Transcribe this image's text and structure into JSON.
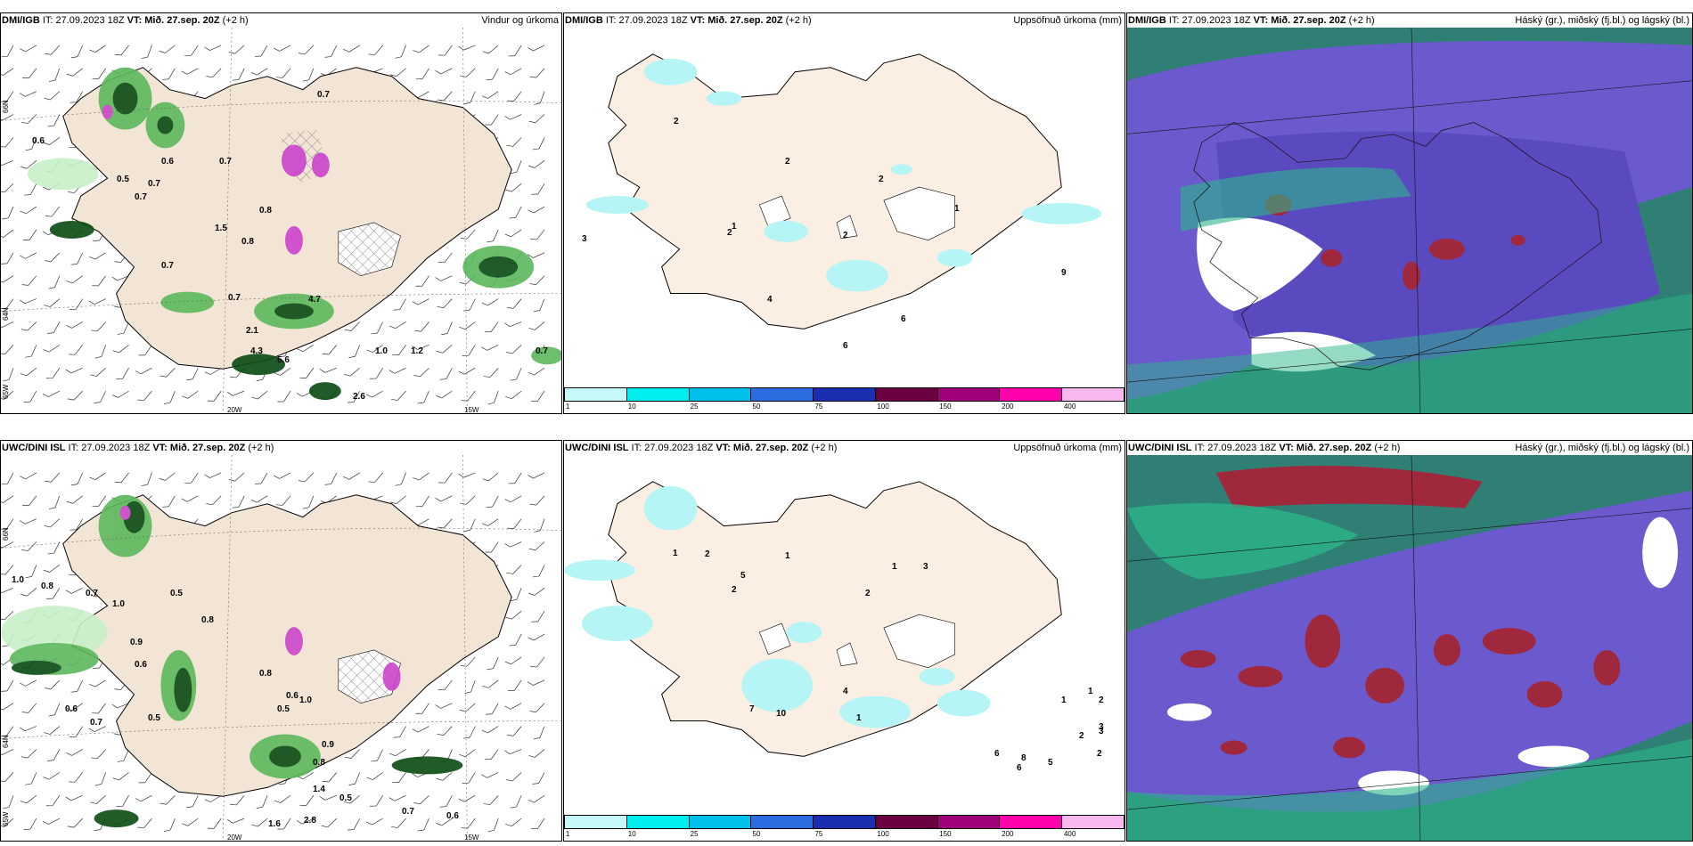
{
  "colors": {
    "land": "#f5e6d8",
    "light_green": "#c8efc8",
    "mid_green": "#5cb85c",
    "dark_green": "#0a4a12",
    "magenta": "#cc44cc",
    "cyan_light": "#b5f5f5",
    "cloud_high": "#2f7f74",
    "cloud_mid": "#6a5acd",
    "cloud_low": "#2bb58a",
    "cloud_red": "#a0283c"
  },
  "colorbar": {
    "colors": [
      "#c6f8f8",
      "#00eeee",
      "#00bfea",
      "#2b6de0",
      "#1a2fb0",
      "#6a0040",
      "#a0007a",
      "#ff00aa",
      "#f7b8f0"
    ],
    "ticks": [
      "1",
      "10",
      "25",
      "50",
      "75",
      "100",
      "150",
      "200",
      "400"
    ]
  },
  "rows": [
    {
      "model_bold": "DMI/IGB",
      "it": " IT: 27.09.2023 18Z ",
      "vt_bold": "VT: Mið. 27.sep. 20Z",
      "vt_suffix": " (+2 h)",
      "panels": [
        {
          "title_right": "Vindur og úrkoma",
          "lat_labels": [
            "66N",
            "64N",
            "65W"
          ],
          "lon_labels": [
            "20W",
            "15W"
          ],
          "values": [
            "0.6",
            "0.5",
            "0.7",
            "0.6",
            "0.8",
            "0.8",
            "0.7",
            "0.7",
            "0.7",
            "1.0",
            "1.2",
            "0.7",
            "2.1",
            "4.3",
            "5.6",
            "4.7",
            "2.6",
            "0.7",
            "1.5",
            "0.7"
          ]
        },
        {
          "title_right": "Uppsöfnuð úrkoma (mm)",
          "values": [
            "2",
            "2",
            "2",
            "2",
            "1",
            "3",
            "4",
            "6",
            "9",
            "6",
            "2",
            "1"
          ]
        },
        {
          "title_right": "Háský (gr.), miðský (fj.bl.) og lágský (bl.)"
        }
      ]
    },
    {
      "model_bold": "UWC/DINI ISL",
      "it": " IT: 27.09.2023 18Z ",
      "vt_bold": "VT: Mið. 27.sep. 20Z",
      "vt_suffix": " (+2 h)",
      "panels": [
        {
          "title_right": "",
          "lat_labels": [
            "66N",
            "64N",
            "65W"
          ],
          "lon_labels": [
            "20W",
            "15W"
          ],
          "values": [
            "1.0",
            "0.8",
            "0.7",
            "1.0",
            "0.8",
            "0.9",
            "0.7",
            "0.6",
            "0.5",
            "0.6",
            "0.5",
            "0.8",
            "1.4",
            "0.5",
            "1.6",
            "2.8",
            "0.7",
            "0.6",
            "0.5",
            "0.9",
            "0.8",
            "1.0",
            "0.6"
          ]
        },
        {
          "title_right": "Uppsöfnuð úrkoma (mm)",
          "values": [
            "1",
            "2",
            "2",
            "1",
            "5",
            "3",
            "1",
            "2",
            "7",
            "10",
            "1",
            "4",
            "6",
            "8",
            "5",
            "6",
            "2",
            "3",
            "2",
            "1",
            "3",
            "2",
            "1"
          ]
        },
        {
          "title_right": "Háský (gr.), miðský (fj.bl.) og lágský (bl.)"
        }
      ]
    }
  ]
}
